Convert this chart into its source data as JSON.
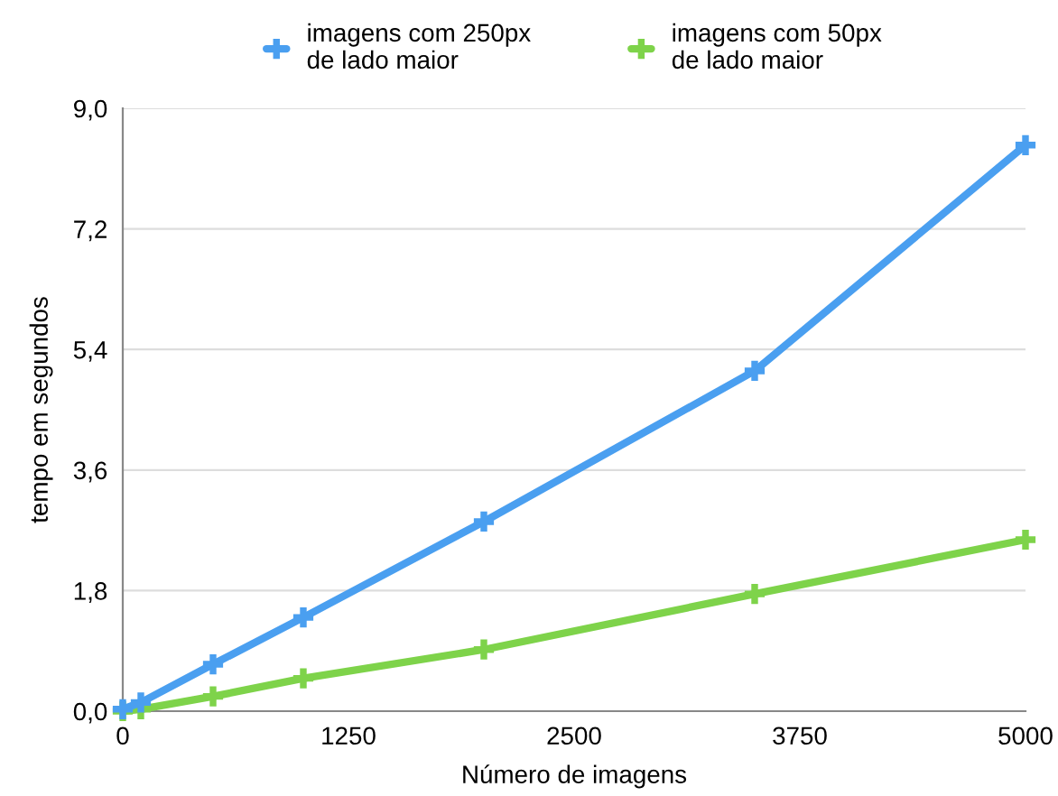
{
  "chart_data": {
    "type": "line",
    "xlabel": "Número de imagens",
    "ylabel": "tempo em segundos",
    "x": [
      0,
      100,
      500,
      1000,
      2000,
      3500,
      5000
    ],
    "series": [
      {
        "name": "imagens com 250px\nde lado maior",
        "color": "#4a9ff0",
        "values": [
          0.03,
          0.13,
          0.7,
          1.4,
          2.83,
          5.08,
          8.45
        ]
      },
      {
        "name": "imagens com 50px\nde lado maior",
        "color": "#7ed34a",
        "values": [
          0,
          0.03,
          0.22,
          0.49,
          0.92,
          1.75,
          2.56
        ]
      }
    ],
    "xlim": [
      0,
      5000
    ],
    "xticks": [
      0,
      1250,
      2500,
      3750,
      5000
    ],
    "ylim": [
      0,
      9
    ],
    "yticks": [
      {
        "value": 0,
        "label": "0,0"
      },
      {
        "value": 1.8,
        "label": "1,8"
      },
      {
        "value": 3.6,
        "label": "3,6"
      },
      {
        "value": 5.4,
        "label": "5,4"
      },
      {
        "value": 7.2,
        "label": "7,2"
      },
      {
        "value": 9,
        "label": "9,0"
      }
    ],
    "grid": "y",
    "legend": "top",
    "marker": "cross",
    "line_style": "solid"
  }
}
